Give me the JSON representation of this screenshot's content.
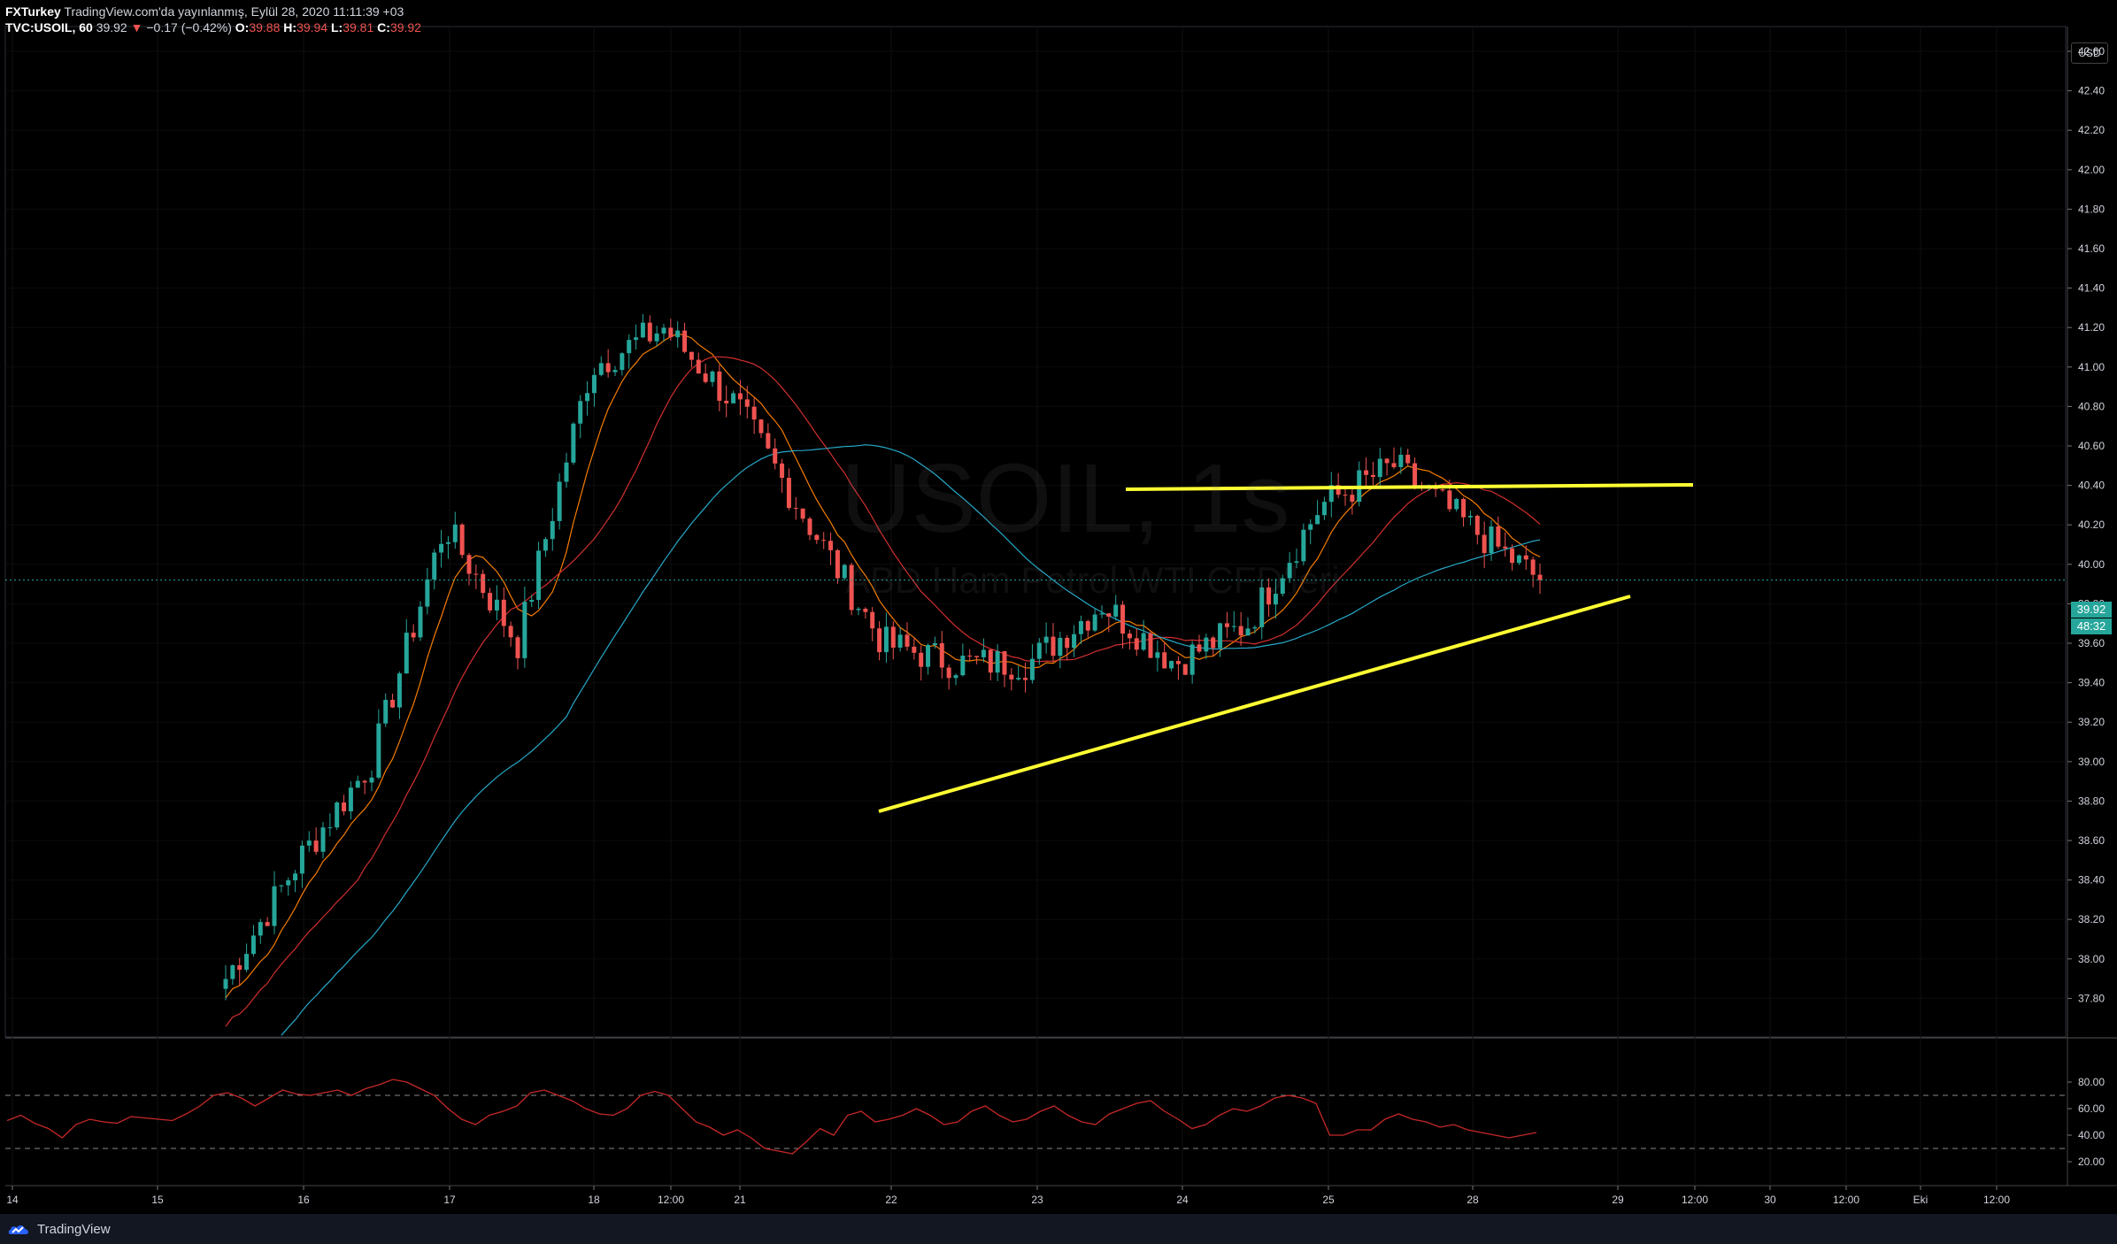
{
  "header": {
    "publisher": "FXTurkey",
    "published_text": "TradingView.com'da yayınlanmış, Eylül 28, 2020 11:11:39 +03",
    "symbol": "TVC:USOIL, 60",
    "last": "39.92",
    "change_arrow": "▼",
    "change": "−0.17 (−0.42%)",
    "o_label": "O:",
    "o_value": "39.88",
    "h_label": "H:",
    "h_value": "39.94",
    "l_label": "L:",
    "l_value": "39.81",
    "c_label": "C:",
    "c_value": "39.92"
  },
  "watermark": {
    "symbol": "USOIL, 1s",
    "description": "ABD Ham Petrol WTI CFD'leri"
  },
  "currency_badge": "USD",
  "price_badge": "39.92",
  "countdown_badge": "48:32",
  "footer": {
    "brand": "TradingView"
  },
  "colors": {
    "background": "#000000",
    "up": "#26a69a",
    "down": "#ef5350",
    "trendline": "#ffff33",
    "ma_fast": "#f57c00",
    "ma_mid": "#d32f2f",
    "ma_slow": "#26a8c8",
    "rsi": "#c62828",
    "price_badge": "#26a69a"
  },
  "chart_data": [
    {
      "type": "candlestick",
      "title": "TVC:USOIL, 60",
      "y_axis_ticks": [
        42.6,
        42.4,
        42.2,
        42.0,
        41.8,
        41.6,
        41.4,
        41.2,
        41.0,
        40.8,
        40.6,
        40.4,
        40.2,
        40.0,
        39.8,
        39.6,
        39.4,
        39.2,
        39.0,
        38.8,
        38.6,
        38.4,
        38.2,
        38.0,
        37.8
      ],
      "y_axis_tick_labels": [
        "42.60",
        "42.40",
        "42.20",
        "42.00",
        "41.80",
        "41.60",
        "41.40",
        "41.20",
        "41.00",
        "40.80",
        "40.60",
        "40.40",
        "40.20",
        "40.00",
        "39.80",
        "39.60",
        "39.40",
        "39.20",
        "39.00",
        "38.80",
        "38.60",
        "38.40",
        "38.20",
        "38.00",
        "37.80"
      ],
      "ylim": [
        37.78,
        42.78
      ],
      "x_axis_ticks": [
        "14",
        "15",
        "16",
        "17",
        "18",
        "12:00",
        "21",
        "22",
        "23",
        "24",
        "25",
        "28",
        "29",
        "12:00",
        "30",
        "12:00",
        "Eki",
        "12:00"
      ],
      "last_price": 39.92,
      "candles_approx_close": [
        {
          "x": "15 late",
          "close": 37.9
        },
        {
          "x": "16",
          "close": 38.5
        },
        {
          "x": "16 late",
          "close": 39.0
        },
        {
          "x": "17",
          "close": 40.2
        },
        {
          "x": "17 late",
          "close": 39.6
        },
        {
          "x": "18",
          "close": 41.0
        },
        {
          "x": "18 12:00",
          "close": 41.2
        },
        {
          "x": "21",
          "close": 40.8
        },
        {
          "x": "21 late",
          "close": 40.2
        },
        {
          "x": "22",
          "close": 39.6
        },
        {
          "x": "22 late",
          "close": 39.5
        },
        {
          "x": "23",
          "close": 39.5
        },
        {
          "x": "23 late",
          "close": 39.8
        },
        {
          "x": "24",
          "close": 39.5
        },
        {
          "x": "24 late",
          "close": 39.7
        },
        {
          "x": "25",
          "close": 40.3
        },
        {
          "x": "25 late",
          "close": 40.5
        },
        {
          "x": "28",
          "close": 40.2
        },
        {
          "x": "28 late",
          "close": 39.92
        }
      ],
      "trendlines": [
        {
          "name": "resistance",
          "from": {
            "x": "23 12:00",
            "y": 40.53
          },
          "to": {
            "x": "29 12:00",
            "y": 40.55
          }
        },
        {
          "name": "support",
          "from": {
            "x": "21 late",
            "y": 38.9
          },
          "to": {
            "x": "29",
            "y": 39.99
          }
        }
      ]
    },
    {
      "type": "line",
      "title": "RSI",
      "y_axis_ticks": [
        80,
        60,
        40,
        20
      ],
      "y_axis_tick_labels": [
        "80.00",
        "60.00",
        "40.00",
        "20.00"
      ],
      "bands": [
        70,
        30
      ],
      "ylim": [
        14,
        92
      ],
      "values_approx": [
        51,
        55,
        49,
        45,
        38,
        48,
        52,
        50,
        49,
        54,
        53,
        52,
        51,
        56,
        62,
        70,
        72,
        68,
        62,
        68,
        74,
        71,
        70,
        72,
        74,
        70,
        75,
        78,
        82,
        80,
        75,
        70,
        60,
        52,
        48,
        55,
        58,
        62,
        72,
        74,
        70,
        66,
        60,
        56,
        55,
        60,
        70,
        73,
        70,
        60,
        50,
        46,
        40,
        44,
        38,
        30,
        28,
        26,
        35,
        45,
        40,
        55,
        58,
        50,
        52,
        55,
        60,
        55,
        48,
        50,
        58,
        62,
        55,
        50,
        52,
        58,
        62,
        55,
        50,
        48,
        56,
        60,
        64,
        66,
        58,
        52,
        45,
        48,
        55,
        60,
        58,
        62,
        68,
        70,
        68,
        64,
        40,
        40,
        44,
        44,
        52,
        56,
        52,
        50,
        46,
        48,
        44,
        42,
        40,
        38,
        40,
        42
      ]
    }
  ]
}
